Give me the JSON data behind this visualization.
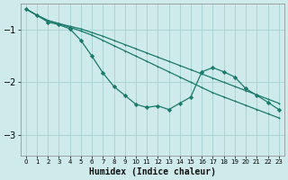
{
  "xlabel": "Humidex (Indice chaleur)",
  "bg_color": "#ceeaea",
  "grid_color": "#acd4d4",
  "line_color": "#1a7a6a",
  "xlim": [
    -0.5,
    23.5
  ],
  "ylim": [
    -3.4,
    -0.5
  ],
  "xticks": [
    0,
    1,
    2,
    3,
    4,
    5,
    6,
    7,
    8,
    9,
    10,
    11,
    12,
    13,
    14,
    15,
    16,
    17,
    18,
    19,
    20,
    21,
    22,
    23
  ],
  "yticks": [
    -3,
    -2,
    -1
  ],
  "line1_x": [
    0,
    1,
    2,
    3,
    4,
    5,
    6,
    7,
    8,
    9,
    10,
    11,
    12,
    13,
    14,
    15,
    16,
    17,
    18,
    19,
    20,
    21,
    22,
    23
  ],
  "line1_y": [
    -0.6,
    -0.72,
    -0.82,
    -0.88,
    -0.93,
    -0.98,
    -1.05,
    -1.12,
    -1.2,
    -1.28,
    -1.36,
    -1.44,
    -1.52,
    -1.6,
    -1.68,
    -1.76,
    -1.84,
    -1.92,
    -2.0,
    -2.08,
    -2.16,
    -2.24,
    -2.32,
    -2.4
  ],
  "line2_x": [
    0,
    1,
    2,
    3,
    4,
    5,
    6,
    7,
    8,
    9,
    10,
    11,
    12,
    13,
    14,
    15,
    16,
    17,
    18,
    19,
    20,
    21,
    22,
    23
  ],
  "line2_y": [
    -0.6,
    -0.72,
    -0.82,
    -0.88,
    -0.95,
    -1.02,
    -1.1,
    -1.2,
    -1.3,
    -1.4,
    -1.5,
    -1.6,
    -1.7,
    -1.8,
    -1.9,
    -2.0,
    -2.1,
    -2.2,
    -2.28,
    -2.36,
    -2.44,
    -2.52,
    -2.6,
    -2.68
  ],
  "line3_x": [
    0,
    1,
    2,
    3,
    4,
    5,
    6,
    7,
    8,
    9,
    10,
    11,
    12,
    13,
    14,
    15,
    16,
    17,
    18,
    19,
    20,
    21,
    22,
    23
  ],
  "line3_y": [
    -0.6,
    -0.72,
    -0.85,
    -0.9,
    -0.98,
    -1.2,
    -1.5,
    -1.82,
    -2.08,
    -2.25,
    -2.42,
    -2.48,
    -2.45,
    -2.52,
    -2.4,
    -2.28,
    -1.8,
    -1.72,
    -1.8,
    -1.9,
    -2.12,
    -2.25,
    -2.38,
    -2.52
  ]
}
